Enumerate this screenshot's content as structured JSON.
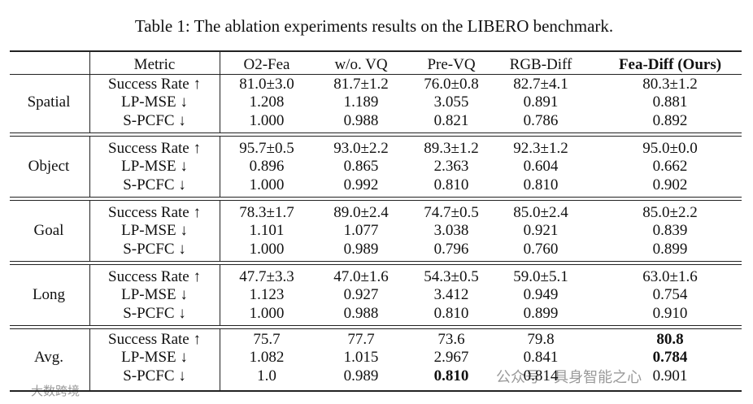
{
  "caption": "Table 1: The ablation experiments results on the LIBERO benchmark.",
  "table": {
    "header": [
      "Metric",
      "O2-Fea",
      "w/o. VQ",
      "Pre-VQ",
      "RGB-Diff",
      "Fea-Diff (Ours)"
    ],
    "header_bold": [
      5
    ],
    "groups": [
      {
        "name": "Spatial",
        "rows": [
          {
            "cells": [
              "Success Rate ↑",
              "81.0±3.0",
              "81.7±1.2",
              "76.0±0.8",
              "82.7±4.1",
              "80.3±1.2"
            ],
            "bold": []
          },
          {
            "cells": [
              "LP-MSE ↓",
              "1.208",
              "1.189",
              "3.055",
              "0.891",
              "0.881"
            ],
            "bold": []
          },
          {
            "cells": [
              "S-PCFC ↓",
              "1.000",
              "0.988",
              "0.821",
              "0.786",
              "0.892"
            ],
            "bold": []
          }
        ]
      },
      {
        "name": "Object",
        "rows": [
          {
            "cells": [
              "Success Rate ↑",
              "95.7±0.5",
              "93.0±2.2",
              "89.3±1.2",
              "92.3±1.2",
              "95.0±0.0"
            ],
            "bold": []
          },
          {
            "cells": [
              "LP-MSE ↓",
              "0.896",
              "0.865",
              "2.363",
              "0.604",
              "0.662"
            ],
            "bold": []
          },
          {
            "cells": [
              "S-PCFC ↓",
              "1.000",
              "0.992",
              "0.810",
              "0.810",
              "0.902"
            ],
            "bold": []
          }
        ]
      },
      {
        "name": "Goal",
        "rows": [
          {
            "cells": [
              "Success Rate ↑",
              "78.3±1.7",
              "89.0±2.4",
              "74.7±0.5",
              "85.0±2.4",
              "85.0±2.2"
            ],
            "bold": []
          },
          {
            "cells": [
              "LP-MSE ↓",
              "1.101",
              "1.077",
              "3.038",
              "0.921",
              "0.839"
            ],
            "bold": []
          },
          {
            "cells": [
              "S-PCFC ↓",
              "1.000",
              "0.989",
              "0.796",
              "0.760",
              "0.899"
            ],
            "bold": []
          }
        ]
      },
      {
        "name": "Long",
        "rows": [
          {
            "cells": [
              "Success Rate ↑",
              "47.7±3.3",
              "47.0±1.6",
              "54.3±0.5",
              "59.0±5.1",
              "63.0±1.6"
            ],
            "bold": []
          },
          {
            "cells": [
              "LP-MSE ↓",
              "1.123",
              "0.927",
              "3.412",
              "0.949",
              "0.754"
            ],
            "bold": []
          },
          {
            "cells": [
              "S-PCFC ↓",
              "1.000",
              "0.988",
              "0.810",
              "0.899",
              "0.910"
            ],
            "bold": []
          }
        ]
      },
      {
        "name": "Avg.",
        "rows": [
          {
            "cells": [
              "Success Rate ↑",
              "75.7",
              "77.7",
              "73.6",
              "79.8",
              "80.8"
            ],
            "bold": [
              5
            ]
          },
          {
            "cells": [
              "LP-MSE ↓",
              "1.082",
              "1.015",
              "2.967",
              "0.841",
              "0.784"
            ],
            "bold": [
              5
            ]
          },
          {
            "cells": [
              "S-PCFC ↓",
              "1.0",
              "0.989",
              "0.810",
              "0.814",
              "0.901"
            ],
            "bold": [
              3
            ]
          }
        ]
      }
    ]
  },
  "watermarks": [
    "公众号 · 具身智能之心",
    "大数跨境"
  ]
}
